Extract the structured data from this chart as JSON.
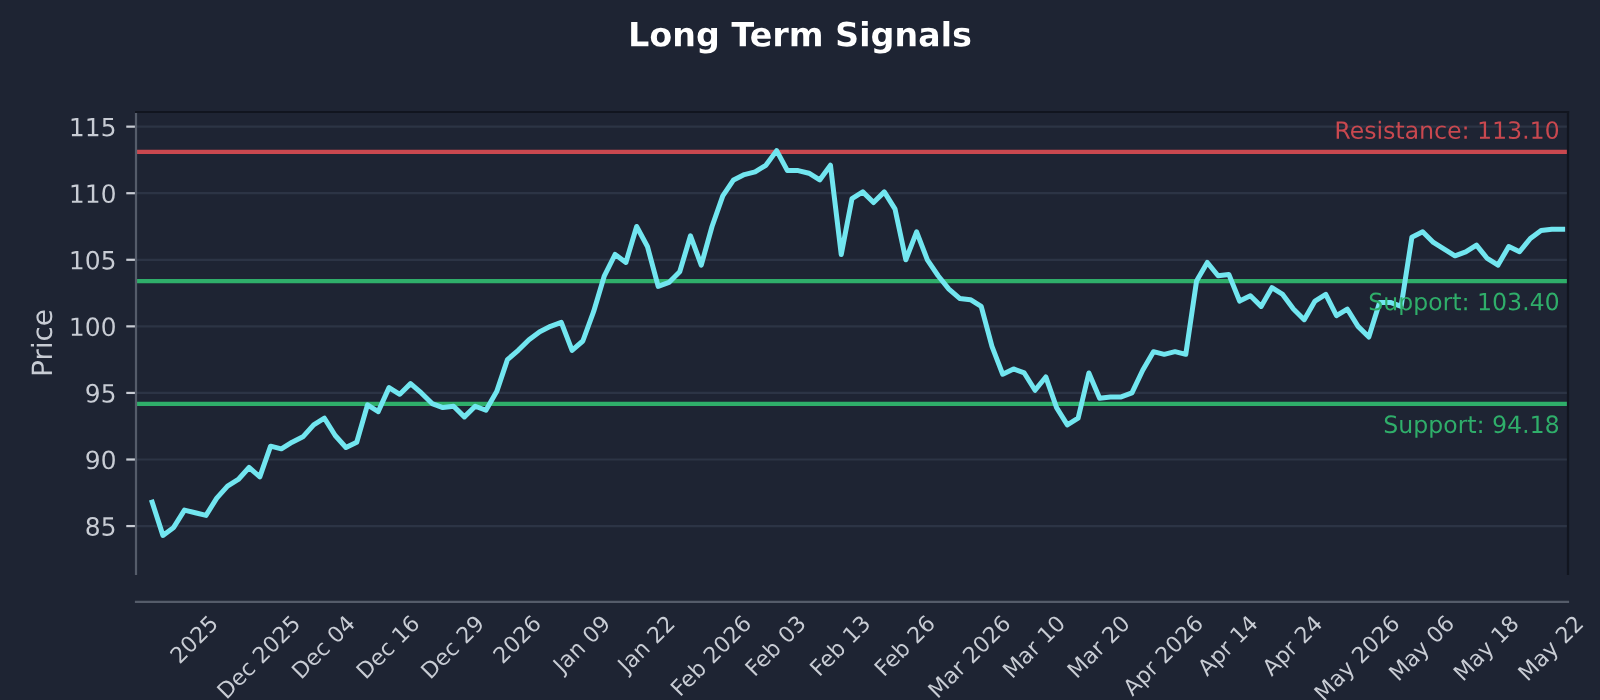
{
  "chart_data": {
    "type": "line",
    "title": "Long Term Signals",
    "ylabel": "Price",
    "categories": [
      null,
      null,
      null,
      null,
      "2025",
      null,
      null,
      null,
      null,
      null,
      "Dec 2025",
      null,
      null,
      null,
      null,
      null,
      "Dec 04",
      null,
      null,
      null,
      null,
      null,
      "Dec 16",
      null,
      null,
      null,
      null,
      null,
      "Dec 29",
      null,
      null,
      null,
      null,
      null,
      "2026",
      null,
      null,
      null,
      null,
      null,
      "Jan 09",
      null,
      null,
      null,
      null,
      null,
      "Jan 22",
      null,
      null,
      null,
      null,
      null,
      "Feb 2026",
      null,
      null,
      null,
      null,
      null,
      "Feb 03",
      null,
      null,
      null,
      null,
      null,
      "Feb 13",
      null,
      null,
      null,
      null,
      null,
      "Feb 26",
      null,
      null,
      null,
      null,
      null,
      "Mar 2026",
      null,
      null,
      null,
      null,
      null,
      "Mar 10",
      null,
      null,
      null,
      null,
      null,
      "Mar 20",
      null,
      null,
      null,
      null,
      null,
      "Apr 2026",
      null,
      null,
      null,
      null,
      null,
      "Apr 14",
      null,
      null,
      null,
      null,
      null,
      "Apr 24",
      null,
      null,
      null,
      null,
      null,
      "May 2026",
      null,
      null,
      null,
      null,
      null,
      "May 06",
      null,
      null,
      null,
      null,
      null,
      "May 18",
      null,
      null,
      null,
      null,
      null,
      "May 22",
      null
    ],
    "series": [
      {
        "color": "#72e6f0",
        "values": [
          86.8,
          84.3,
          84.9,
          86.2,
          86.0,
          85.8,
          87.1,
          88.0,
          88.5,
          89.4,
          88.7,
          91.0,
          90.8,
          91.3,
          91.7,
          92.6,
          93.1,
          91.8,
          90.9,
          91.3,
          94.1,
          93.6,
          95.4,
          94.9,
          95.7,
          95.0,
          94.2,
          93.9,
          94.0,
          93.2,
          94.0,
          93.7,
          95.1,
          97.5,
          98.2,
          99.0,
          99.6,
          100.0,
          100.3,
          98.2,
          98.9,
          101.1,
          103.8,
          105.4,
          104.8,
          107.5,
          106.0,
          103.0,
          103.3,
          104.1,
          106.8,
          104.6,
          107.5,
          109.8,
          111.0,
          111.4,
          111.6,
          112.1,
          113.2,
          111.7,
          111.7,
          111.5,
          111.0,
          112.1,
          105.4,
          109.6,
          110.1,
          109.3,
          110.1,
          108.8,
          105.0,
          107.1,
          105.0,
          103.8,
          102.8,
          102.1,
          102.0,
          101.5,
          98.5,
          96.4,
          96.8,
          96.5,
          95.2,
          96.2,
          93.9,
          92.6,
          93.1,
          96.5,
          94.6,
          94.7,
          94.7,
          95.0,
          96.7,
          98.1,
          97.9,
          98.1,
          97.9,
          103.4,
          104.8,
          103.8,
          103.9,
          101.9,
          102.3,
          101.5,
          102.9,
          102.4,
          101.3,
          100.5,
          101.9,
          102.4,
          100.8,
          101.3,
          100.0,
          99.2,
          101.8,
          101.8,
          101.5,
          106.7,
          107.1,
          106.3,
          105.8,
          105.3,
          105.6,
          106.1,
          105.1,
          104.6,
          106.0,
          105.6,
          106.6,
          107.2,
          107.3,
          107.3
        ]
      }
    ],
    "ylim": [
      81.4,
      116.1
    ],
    "yticks": [
      85,
      90,
      95,
      100,
      105,
      110,
      115
    ],
    "grid": "y",
    "ref_lines": [
      {
        "axis": "y",
        "value": 113.1,
        "label": "Resistance: 113.10",
        "color": "#c9484f"
      },
      {
        "axis": "y",
        "value": 103.4,
        "label": "Support: 103.40",
        "color": "#2fae6a"
      },
      {
        "axis": "y",
        "value": 94.18,
        "label": "Support: 94.18",
        "color": "#2fae6a"
      }
    ]
  }
}
